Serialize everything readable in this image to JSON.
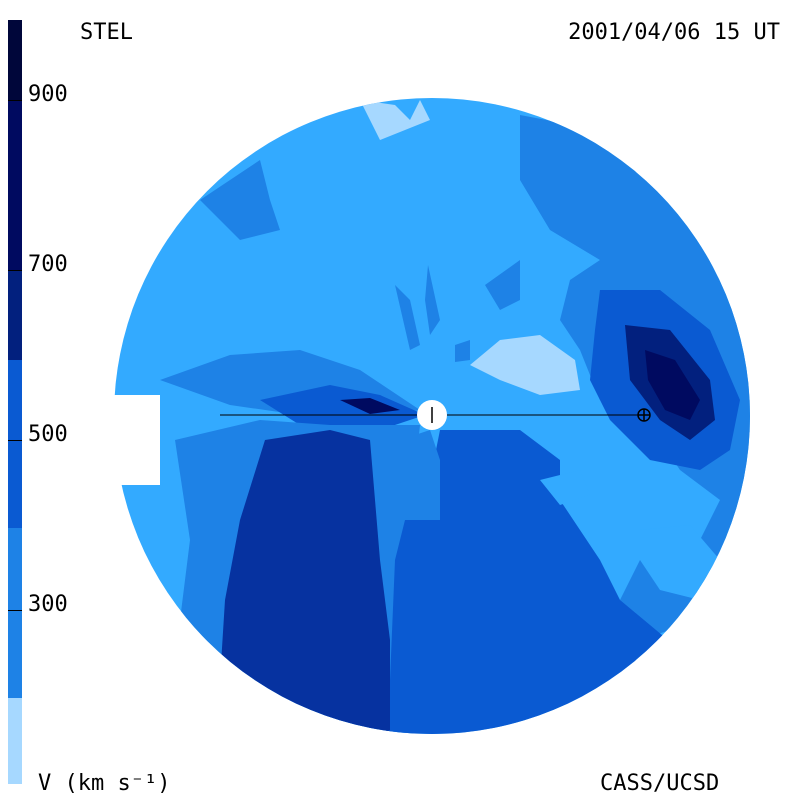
{
  "header": {
    "observatory": "STEL",
    "timestamp": "2001/04/06 15 UT"
  },
  "footer": {
    "units_label": "V (km s⁻¹)",
    "credit": "CASS/UCSD"
  },
  "color_scale": {
    "ticks": [
      "900",
      "700",
      "500",
      "300"
    ],
    "colors": [
      "#a6d8ff",
      "#33aaff",
      "#1e82e6",
      "#0a5ad2",
      "#0632a0",
      "#02207e",
      "#000a60",
      "#00063a"
    ]
  }
}
